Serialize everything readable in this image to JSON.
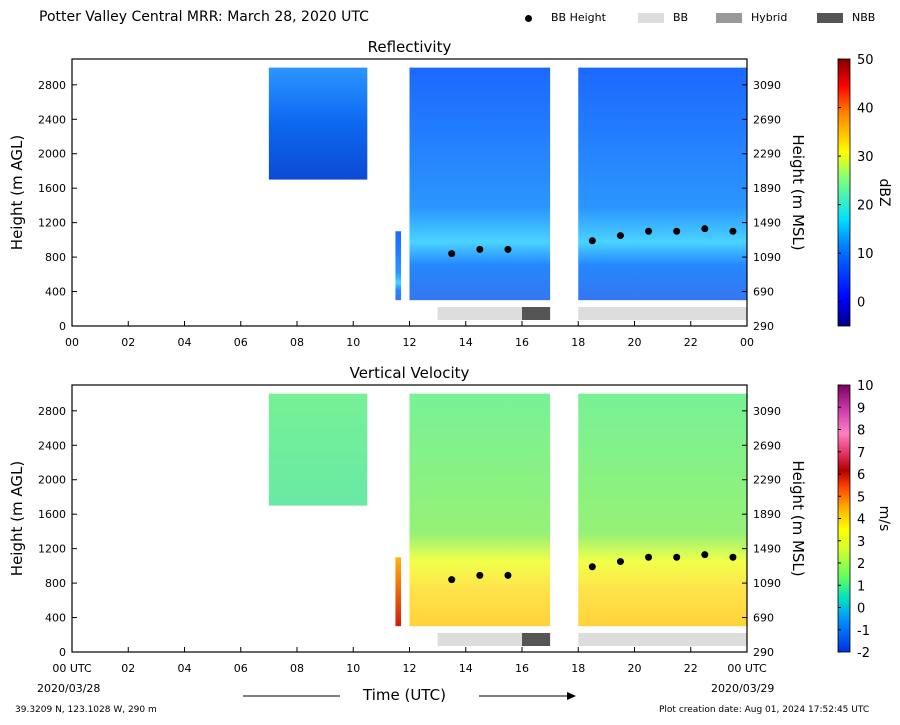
{
  "header": {
    "title": "Potter Valley Central MRR:  March 28, 2020 UTC",
    "legend": [
      {
        "label": "BB Height",
        "kind": "dot",
        "color": "#000000"
      },
      {
        "label": "BB",
        "kind": "swatch",
        "color": "#dddddd"
      },
      {
        "label": "Hybrid",
        "kind": "swatch",
        "color": "#999999"
      },
      {
        "label": "NBB",
        "kind": "swatch",
        "color": "#555555"
      }
    ]
  },
  "footer": {
    "location": "39.3209 N, 123.1028 W, 290 m",
    "created": "Plot creation date: Aug 01, 2024 17:52:45 UTC",
    "start_date": "2020/03/28",
    "end_date": "2020/03/29",
    "xlabel": "Time (UTC)"
  },
  "chart_data": [
    {
      "type": "heatmap",
      "title": "Reflectivity",
      "ylabel": "Height (m AGL)",
      "ylabel_right": "Height (m MSL)",
      "xlim": [
        0,
        24
      ],
      "ylim": [
        0,
        3100
      ],
      "x_ticks": [
        "00",
        "02",
        "04",
        "06",
        "08",
        "10",
        "12",
        "14",
        "16",
        "18",
        "20",
        "22",
        "00"
      ],
      "y_ticks": [
        0,
        400,
        800,
        1200,
        1600,
        2000,
        2400,
        2800
      ],
      "y_ticks_right": [
        290,
        690,
        1090,
        1490,
        1890,
        2290,
        2690,
        3090
      ],
      "colorbar": {
        "label": "dBZ",
        "range": [
          -5,
          50
        ],
        "ticks": [
          0,
          10,
          20,
          30,
          40,
          50
        ]
      },
      "echo_segments": [
        {
          "start": 7.0,
          "end": 10.5,
          "top": 3000,
          "bottom": 1700,
          "value": 6
        },
        {
          "start": 11.5,
          "end": 11.7,
          "top": 1100,
          "bottom": 300,
          "value": 8
        },
        {
          "start": 12.0,
          "end": 17.0,
          "top": 3000,
          "bottom": 300,
          "value": 10
        },
        {
          "start": 18.0,
          "end": 24.0,
          "top": 3000,
          "bottom": 300,
          "value": 12
        }
      ],
      "bb_height": [
        {
          "x": 13.5,
          "y": 840
        },
        {
          "x": 14.5,
          "y": 890
        },
        {
          "x": 15.5,
          "y": 890
        },
        {
          "x": 18.5,
          "y": 990
        },
        {
          "x": 19.5,
          "y": 1050
        },
        {
          "x": 20.5,
          "y": 1100
        },
        {
          "x": 21.5,
          "y": 1100
        },
        {
          "x": 22.5,
          "y": 1130
        },
        {
          "x": 23.5,
          "y": 1100
        }
      ],
      "classification": [
        {
          "start": 13.0,
          "end": 16.0,
          "type": "BB"
        },
        {
          "start": 16.0,
          "end": 17.0,
          "type": "NBB"
        },
        {
          "start": 18.0,
          "end": 24.0,
          "type": "BB"
        }
      ]
    },
    {
      "type": "heatmap",
      "title": "Vertical Velocity",
      "ylabel": "Height (m AGL)",
      "ylabel_right": "Height (m MSL)",
      "xlim": [
        0,
        24
      ],
      "ylim": [
        0,
        3100
      ],
      "x_ticks": [
        "00 UTC",
        "02",
        "04",
        "06",
        "08",
        "10",
        "12",
        "14",
        "16",
        "18",
        "20",
        "22",
        "00 UTC"
      ],
      "y_ticks": [
        0,
        400,
        800,
        1200,
        1600,
        2000,
        2400,
        2800
      ],
      "y_ticks_right": [
        290,
        690,
        1090,
        1490,
        1890,
        2290,
        2690,
        3090
      ],
      "colorbar": {
        "label": "m/s",
        "range": [
          -2,
          10
        ],
        "ticks": [
          -2,
          -1,
          0,
          1,
          2,
          3,
          4,
          5,
          6,
          7,
          8,
          9,
          10
        ]
      },
      "echo_segments": [
        {
          "start": 7.0,
          "end": 10.5,
          "top": 3000,
          "bottom": 1700,
          "value": 1.5
        },
        {
          "start": 11.5,
          "end": 11.7,
          "top": 1100,
          "bottom": 300,
          "value": 5
        },
        {
          "start": 12.0,
          "end": 17.0,
          "top": 3000,
          "bottom": 300,
          "value": 2
        },
        {
          "start": 18.0,
          "end": 24.0,
          "top": 3000,
          "bottom": 300,
          "value": 2.5
        }
      ],
      "bb_height": [
        {
          "x": 13.5,
          "y": 840
        },
        {
          "x": 14.5,
          "y": 890
        },
        {
          "x": 15.5,
          "y": 890
        },
        {
          "x": 18.5,
          "y": 990
        },
        {
          "x": 19.5,
          "y": 1050
        },
        {
          "x": 20.5,
          "y": 1100
        },
        {
          "x": 21.5,
          "y": 1100
        },
        {
          "x": 22.5,
          "y": 1130
        },
        {
          "x": 23.5,
          "y": 1100
        }
      ],
      "classification": [
        {
          "start": 13.0,
          "end": 16.0,
          "type": "BB"
        },
        {
          "start": 16.0,
          "end": 17.0,
          "type": "NBB"
        },
        {
          "start": 18.0,
          "end": 24.0,
          "type": "BB"
        }
      ]
    }
  ]
}
